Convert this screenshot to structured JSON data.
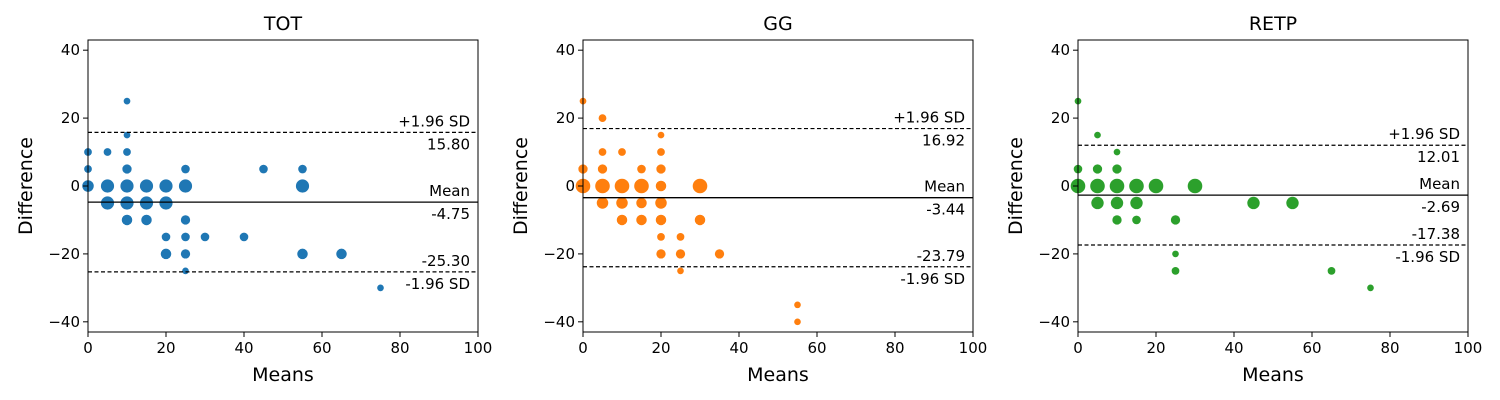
{
  "chart_data": [
    {
      "type": "scatter",
      "title": "TOT",
      "xlabel": "Means",
      "ylabel": "Difference",
      "xlim": [
        0,
        100
      ],
      "ylim": [
        -43,
        43
      ],
      "xticks": [
        0,
        20,
        40,
        60,
        80,
        100
      ],
      "yticks": [
        -40,
        -20,
        0,
        20,
        40
      ],
      "color": "#1f77b4",
      "grid": false,
      "mean_line": {
        "value": -4.75,
        "label": "Mean",
        "value_label": "-4.75"
      },
      "upper_loa": {
        "value": 15.8,
        "label": "+1.96 SD",
        "value_label": "15.80"
      },
      "lower_loa": {
        "value": -25.3,
        "label": "-1.96 SD",
        "value_label": "-25.30"
      },
      "points": [
        {
          "x": 0,
          "y": 0,
          "n": 4
        },
        {
          "x": 0,
          "y": 5,
          "n": 1
        },
        {
          "x": 0,
          "y": 10,
          "n": 1
        },
        {
          "x": 5,
          "y": 0,
          "n": 6
        },
        {
          "x": 5,
          "y": -5,
          "n": 6
        },
        {
          "x": 5,
          "y": 10,
          "n": 1
        },
        {
          "x": 10,
          "y": 0,
          "n": 6
        },
        {
          "x": 10,
          "y": -5,
          "n": 6
        },
        {
          "x": 10,
          "y": 5,
          "n": 2
        },
        {
          "x": 10,
          "y": 10,
          "n": 1
        },
        {
          "x": 10,
          "y": -10,
          "n": 3
        },
        {
          "x": 10,
          "y": 15,
          "n": 0.5
        },
        {
          "x": 10,
          "y": 25,
          "n": 0.5
        },
        {
          "x": 15,
          "y": 0,
          "n": 6
        },
        {
          "x": 15,
          "y": -5,
          "n": 6
        },
        {
          "x": 15,
          "y": -10,
          "n": 3
        },
        {
          "x": 20,
          "y": 0,
          "n": 6
        },
        {
          "x": 20,
          "y": -5,
          "n": 6
        },
        {
          "x": 20,
          "y": -15,
          "n": 1.5
        },
        {
          "x": 20,
          "y": -20,
          "n": 3
        },
        {
          "x": 25,
          "y": 0,
          "n": 6
        },
        {
          "x": 25,
          "y": 5,
          "n": 1.5
        },
        {
          "x": 25,
          "y": -10,
          "n": 2
        },
        {
          "x": 25,
          "y": -15,
          "n": 1.5
        },
        {
          "x": 25,
          "y": -20,
          "n": 2
        },
        {
          "x": 25,
          "y": -25,
          "n": 0.5
        },
        {
          "x": 30,
          "y": -15,
          "n": 1.5
        },
        {
          "x": 40,
          "y": -15,
          "n": 1.5
        },
        {
          "x": 45,
          "y": 5,
          "n": 1.5
        },
        {
          "x": 55,
          "y": 0,
          "n": 6
        },
        {
          "x": 55,
          "y": 5,
          "n": 1.5
        },
        {
          "x": 55,
          "y": -20,
          "n": 3
        },
        {
          "x": 65,
          "y": -20,
          "n": 3
        },
        {
          "x": 75,
          "y": -30,
          "n": 0.5
        }
      ]
    },
    {
      "type": "scatter",
      "title": "GG",
      "xlabel": "Means",
      "ylabel": "Difference",
      "xlim": [
        0,
        100
      ],
      "ylim": [
        -43,
        43
      ],
      "xticks": [
        0,
        20,
        40,
        60,
        80,
        100
      ],
      "yticks": [
        -40,
        -20,
        0,
        20,
        40
      ],
      "color": "#ff7f0e",
      "grid": false,
      "mean_line": {
        "value": -3.44,
        "label": "Mean",
        "value_label": "-3.44"
      },
      "upper_loa": {
        "value": 16.92,
        "label": "+1.96 SD",
        "value_label": "16.92"
      },
      "lower_loa": {
        "value": -23.79,
        "label": "-1.96 SD",
        "value_label": "-23.79"
      },
      "points": [
        {
          "x": 0,
          "y": 0,
          "n": 8
        },
        {
          "x": 0,
          "y": 5,
          "n": 2
        },
        {
          "x": 0,
          "y": 25,
          "n": 0.5
        },
        {
          "x": 5,
          "y": 0,
          "n": 8
        },
        {
          "x": 5,
          "y": -5,
          "n": 4
        },
        {
          "x": 5,
          "y": 5,
          "n": 2
        },
        {
          "x": 5,
          "y": 10,
          "n": 1
        },
        {
          "x": 5,
          "y": 20,
          "n": 1
        },
        {
          "x": 10,
          "y": 0,
          "n": 8
        },
        {
          "x": 10,
          "y": -5,
          "n": 4
        },
        {
          "x": 10,
          "y": -10,
          "n": 3
        },
        {
          "x": 10,
          "y": 10,
          "n": 1
        },
        {
          "x": 15,
          "y": 0,
          "n": 8
        },
        {
          "x": 15,
          "y": -5,
          "n": 3
        },
        {
          "x": 15,
          "y": -10,
          "n": 3
        },
        {
          "x": 15,
          "y": 5,
          "n": 1.5
        },
        {
          "x": 20,
          "y": 0,
          "n": 3
        },
        {
          "x": 20,
          "y": -5,
          "n": 4
        },
        {
          "x": 20,
          "y": -10,
          "n": 3
        },
        {
          "x": 20,
          "y": 5,
          "n": 2
        },
        {
          "x": 20,
          "y": 10,
          "n": 1
        },
        {
          "x": 20,
          "y": 15,
          "n": 0.5
        },
        {
          "x": 20,
          "y": -15,
          "n": 1
        },
        {
          "x": 20,
          "y": -20,
          "n": 2
        },
        {
          "x": 25,
          "y": -15,
          "n": 1
        },
        {
          "x": 25,
          "y": -20,
          "n": 2
        },
        {
          "x": 25,
          "y": -25,
          "n": 0.5
        },
        {
          "x": 30,
          "y": 0,
          "n": 8
        },
        {
          "x": 30,
          "y": -10,
          "n": 3
        },
        {
          "x": 35,
          "y": -20,
          "n": 2
        },
        {
          "x": 55,
          "y": -35,
          "n": 0.5
        },
        {
          "x": 55,
          "y": -40,
          "n": 0.5
        }
      ]
    },
    {
      "type": "scatter",
      "title": "RETP",
      "xlabel": "Means",
      "ylabel": "Difference",
      "xlim": [
        0,
        100
      ],
      "ylim": [
        -43,
        43
      ],
      "xticks": [
        0,
        20,
        40,
        60,
        80,
        100
      ],
      "yticks": [
        -40,
        -20,
        0,
        20,
        40
      ],
      "color": "#2ca02c",
      "grid": false,
      "mean_line": {
        "value": -2.69,
        "label": "Mean",
        "value_label": "-2.69"
      },
      "upper_loa": {
        "value": 12.01,
        "label": "+1.96 SD",
        "value_label": "12.01"
      },
      "lower_loa": {
        "value": -17.38,
        "label": "-1.96 SD",
        "value_label": "-17.38"
      },
      "points": [
        {
          "x": 0,
          "y": 0,
          "n": 8
        },
        {
          "x": 0,
          "y": 5,
          "n": 1.5
        },
        {
          "x": 0,
          "y": 25,
          "n": 0.5
        },
        {
          "x": 5,
          "y": 0,
          "n": 8
        },
        {
          "x": 5,
          "y": -5,
          "n": 5
        },
        {
          "x": 5,
          "y": 5,
          "n": 2
        },
        {
          "x": 5,
          "y": 15,
          "n": 0.5
        },
        {
          "x": 10,
          "y": 0,
          "n": 8
        },
        {
          "x": 10,
          "y": -5,
          "n": 5
        },
        {
          "x": 10,
          "y": 5,
          "n": 2
        },
        {
          "x": 10,
          "y": 10,
          "n": 0.5
        },
        {
          "x": 10,
          "y": -10,
          "n": 2
        },
        {
          "x": 15,
          "y": 0,
          "n": 8
        },
        {
          "x": 15,
          "y": -5,
          "n": 5
        },
        {
          "x": 15,
          "y": -10,
          "n": 1.5
        },
        {
          "x": 20,
          "y": 0,
          "n": 8
        },
        {
          "x": 25,
          "y": -10,
          "n": 2
        },
        {
          "x": 25,
          "y": -20,
          "n": 0.5
        },
        {
          "x": 25,
          "y": -25,
          "n": 1
        },
        {
          "x": 30,
          "y": 0,
          "n": 8
        },
        {
          "x": 45,
          "y": -5,
          "n": 5
        },
        {
          "x": 55,
          "y": -5,
          "n": 5
        },
        {
          "x": 65,
          "y": -25,
          "n": 1
        },
        {
          "x": 75,
          "y": -30,
          "n": 0.5
        }
      ]
    }
  ]
}
